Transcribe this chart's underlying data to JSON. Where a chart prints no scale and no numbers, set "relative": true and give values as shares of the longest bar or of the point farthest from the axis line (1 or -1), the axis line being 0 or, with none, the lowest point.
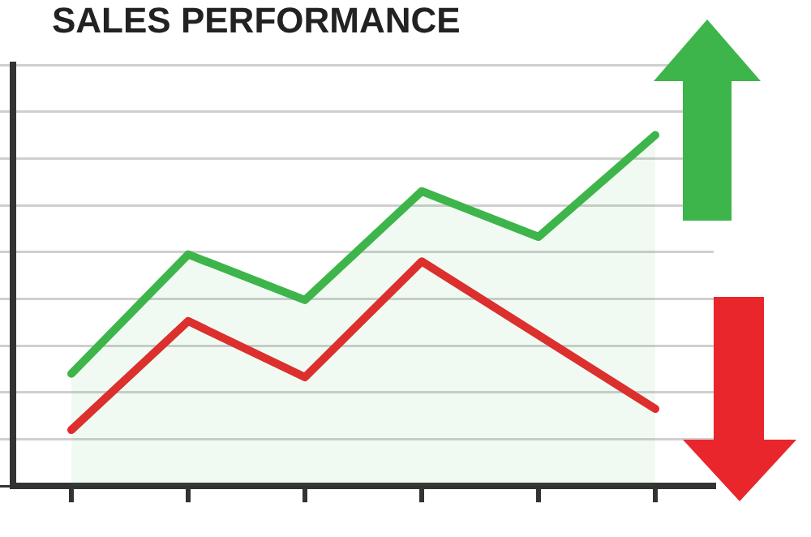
{
  "chart_data": {
    "type": "line",
    "title": "SALES PERFORMANCE",
    "relative": true,
    "categories": [
      null,
      null,
      null,
      null,
      null,
      null
    ],
    "series": [
      {
        "type": "area",
        "color": "#3db54a",
        "values": [
          0.32,
          0.66,
          0.53,
          0.84,
          0.71,
          1
        ]
      },
      {
        "type": "line",
        "color": "#e8262c",
        "values": [
          0.16,
          0.47,
          0.31,
          0.64,
          null,
          0.22
        ]
      }
    ],
    "grid": "y",
    "legend": false,
    "marker": "none",
    "line_style": "solid"
  }
}
